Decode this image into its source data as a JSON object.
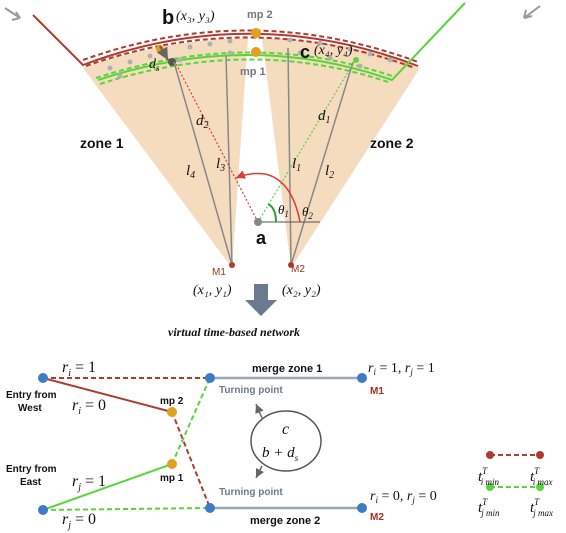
{
  "top": {
    "point_b": "b",
    "point_b_coords": "(x₃, y₃)",
    "mp2": "mp 2",
    "point_c": "c",
    "point_c_coords": "(x₄, y₄)",
    "mp1": "mp 1",
    "d_s": "d",
    "d_s_sub": "s",
    "zone1": "zone 1",
    "zone2": "zone 2",
    "d2": "d",
    "d2_sub": "2",
    "d1": "d",
    "d1_sub": "1",
    "l4": "l",
    "l4_sub": "4",
    "l3": "l",
    "l3_sub": "3",
    "l1": "l",
    "l1_sub": "1",
    "l2": "l",
    "l2_sub": "2",
    "theta1": "θ",
    "theta1_sub": "1",
    "theta2": "θ",
    "theta2_sub": "2",
    "point_a": "a",
    "m1": "M1",
    "m2": "M2",
    "m1_coords": "(x₁, y₁)",
    "m2_coords": "(x₂, y₂)"
  },
  "caption": "virtual time-based network",
  "bottom": {
    "ri_eq_1": "r",
    "ri_eq_1_sub": "i",
    "ri_eq_1_rest": " = 1",
    "ri_eq_0": "r",
    "ri_eq_0_sub": "i",
    "ri_eq_0_rest": " = 0",
    "rj_eq_1": "r",
    "rj_eq_1_sub": "j",
    "rj_eq_1_rest": " = 1",
    "rj_eq_0": "r",
    "rj_eq_0_sub": "j",
    "rj_eq_0_rest": " = 0",
    "entry_west_1": "Entry from",
    "entry_west_2": "West",
    "entry_east_1": "Entry from",
    "entry_east_2": "East",
    "mp2": "mp 2",
    "mp1": "mp 1",
    "merge_zone_1": "merge zone 1",
    "merge_zone_2": "merge zone 2",
    "turning_point_1": "Turning point",
    "turning_point_2": "Turning point",
    "m1": "M1",
    "m2": "M2",
    "right_top_a": "r",
    "right_top_a_sub": "i",
    "right_top_a_rest": " = 1, ",
    "right_top_b": "r",
    "right_top_b_sub": "j",
    "right_top_b_rest": " = 1",
    "right_bot_a": "r",
    "right_bot_a_sub": "i",
    "right_bot_a_rest": " = 0, ",
    "right_bot_b": "r",
    "right_bot_b_sub": "j",
    "right_bot_b_rest": " = 0",
    "ellipse_c": "c",
    "ellipse_b": "b + d",
    "ellipse_b_sub": "s"
  },
  "legend": {
    "t_i_min": "t",
    "t_i_min_sup": "T",
    "t_i_min_sub": "i min",
    "t_i_max": "t",
    "t_i_max_sup": "T",
    "t_i_max_sub": "i max",
    "t_j_min": "t",
    "t_j_min_sup": "T",
    "t_j_min_sub": "j min",
    "t_j_max": "t",
    "t_j_max_sup": "T",
    "t_j_max_sub": "j max"
  },
  "colors": {
    "zone_fill": "#f5dcbf",
    "west_path": "#b03a2e",
    "east_path": "#59d43a",
    "node_blue": "#3b7bc8",
    "node_orange": "#e0a020",
    "merge_line": "#9aa7b5",
    "arrow": "#6b7a8f",
    "label_red": "#a03020"
  }
}
